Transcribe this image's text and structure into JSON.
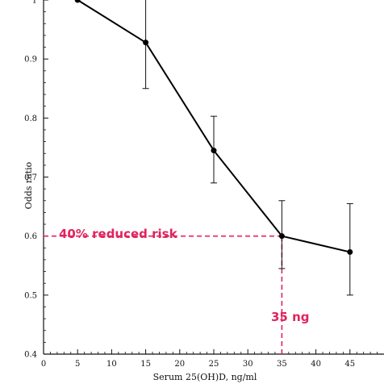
{
  "chart_data": {
    "type": "line",
    "title": "",
    "xlabel": "Serum 25(OH)D, ng/ml",
    "ylabel": "Odds ratio",
    "xlim": [
      0,
      50
    ],
    "ylim": [
      0.4,
      1.0
    ],
    "x_ticks": [
      0,
      5,
      10,
      15,
      20,
      25,
      30,
      35,
      40,
      45
    ],
    "y_ticks": [
      0.4,
      0.5,
      0.6,
      0.7,
      0.8,
      0.9,
      1.0
    ],
    "x_tick_labels": [
      "0",
      "5",
      "10",
      "15",
      "20",
      "25",
      "30",
      "35",
      "40",
      "45"
    ],
    "y_tick_labels": [
      "0.4",
      "0.5",
      "0.6",
      "0.7",
      "0.8",
      "0.9",
      "1"
    ],
    "grid": false,
    "legend": "none",
    "series": [
      {
        "x": [
          5,
          15,
          25,
          35,
          45
        ],
        "y": [
          1.0,
          0.928,
          0.745,
          0.6,
          0.573
        ],
        "error_low": [
          null,
          0.85,
          0.69,
          0.545,
          0.5
        ],
        "error_high": [
          null,
          1.01,
          0.803,
          0.66,
          0.655
        ]
      }
    ],
    "annotations": [
      {
        "text": "40% reduced risk",
        "color": "#e0245e"
      },
      {
        "text": "35 ng",
        "color": "#e0245e"
      }
    ],
    "reference_lines": [
      {
        "orientation": "horizontal",
        "y": 0.6,
        "x_from": 0,
        "x_to": 35,
        "color": "#e0245e",
        "style": "dashed"
      },
      {
        "orientation": "vertical",
        "x": 35,
        "y_from": 0.4,
        "y_to": 0.6,
        "color": "#e0245e",
        "style": "dashed"
      }
    ],
    "colors": {
      "line": "#000000",
      "annotation": "#e0245e"
    }
  }
}
